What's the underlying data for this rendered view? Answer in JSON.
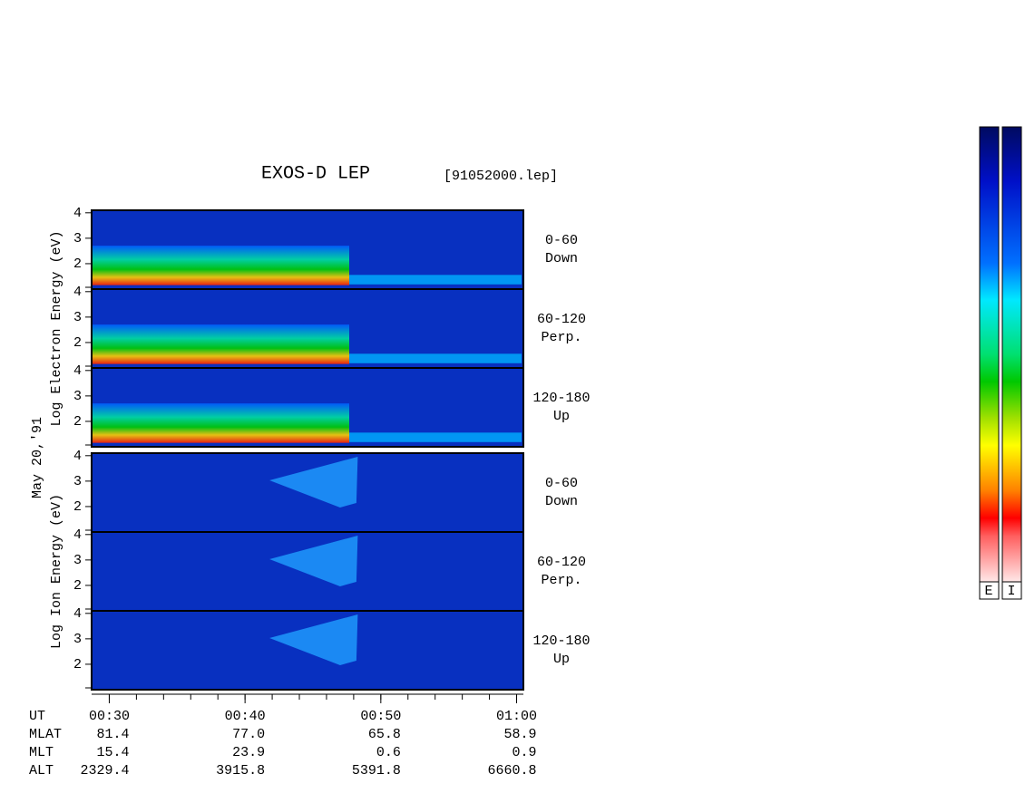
{
  "chart_data": {
    "type": "spectrogram",
    "title": "EXOS-D LEP",
    "file": "[91052000.lep]",
    "date_label": "May 20,'91",
    "groups": [
      {
        "ylabel": "Log  Electron  Energy (eV)",
        "panels": [
          [
            "0-60",
            "Down"
          ],
          [
            "60-120",
            "Perp."
          ],
          [
            "120-180",
            "Up"
          ]
        ]
      },
      {
        "ylabel": "Log  Ion  Energy (eV)",
        "panels": [
          [
            "0-60",
            "Down"
          ],
          [
            "60-120",
            "Perp."
          ],
          [
            "120-180",
            "Up"
          ]
        ]
      }
    ],
    "ylim": [
      1,
      4.1
    ],
    "yticks": [
      2,
      3,
      4
    ],
    "xlim": [
      28.7,
      60.5
    ],
    "xticks": [
      {
        "value": 30,
        "label": "00:30"
      },
      {
        "value": 40,
        "label": "00:40"
      },
      {
        "value": 50,
        "label": "00:50"
      },
      {
        "value": 60,
        "label": "01:00"
      }
    ],
    "ephemeris": [
      {
        "label": "UT"
      },
      {
        "label": "MLAT",
        "values": [
          "81.4",
          "77.0",
          "65.8",
          "58.9"
        ]
      },
      {
        "label": "MLT",
        "values": [
          "15.4",
          "23.9",
          "0.6",
          "0.9"
        ]
      },
      {
        "label": "ALT",
        "values": [
          "2329.4",
          "3915.8",
          "5391.8",
          "6660.8"
        ]
      }
    ],
    "colorbar_labels": [
      "E",
      "I"
    ]
  }
}
